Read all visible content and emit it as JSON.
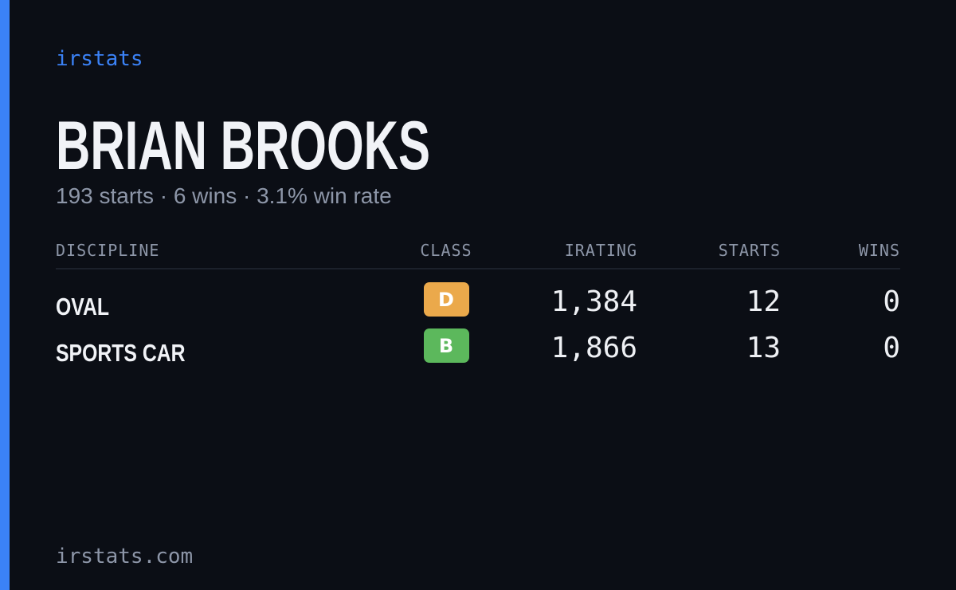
{
  "brand": "irstats",
  "header": {
    "title": "BRIAN BROOKS",
    "subtitle": "193 starts · 6 wins · 3.1% win rate"
  },
  "table": {
    "columns": [
      "DISCIPLINE",
      "CLASS",
      "IRATING",
      "STARTS",
      "WINS"
    ],
    "rows": [
      {
        "discipline": "OVAL",
        "class": "D",
        "class_color": "#eba94b",
        "irating": "1,384",
        "starts": "12",
        "wins": "0"
      },
      {
        "discipline": "SPORTS CAR",
        "class": "B",
        "class_color": "#5cb85c",
        "irating": "1,866",
        "starts": "13",
        "wins": "0"
      }
    ]
  },
  "footer": "irstats.com"
}
